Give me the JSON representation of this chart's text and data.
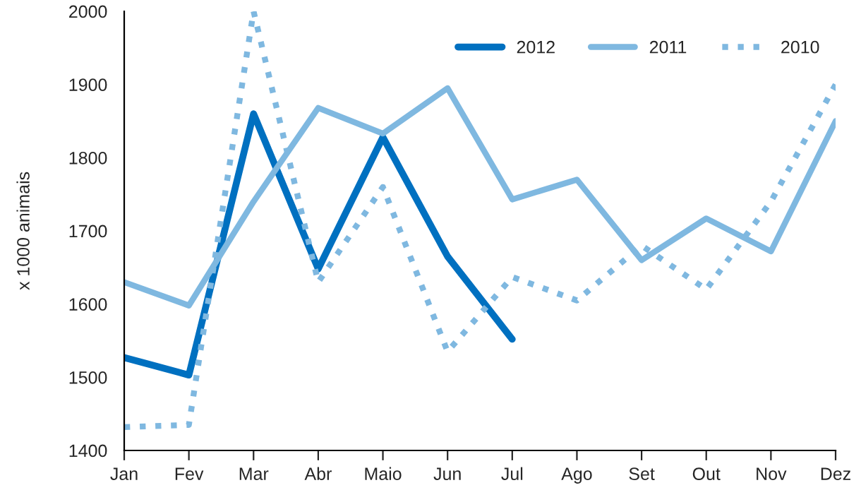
{
  "chart_data": {
    "type": "line",
    "ylabel": "x 1000 animais",
    "categories": [
      "Jan",
      "Fev",
      "Mar",
      "Abr",
      "Maio",
      "Jun",
      "Jul",
      "Ago",
      "Set",
      "Out",
      "Nov",
      "Dez"
    ],
    "series": [
      {
        "name": "2012",
        "color": "#0070c0",
        "line_style": "solid",
        "values": [
          1527,
          1503,
          1860,
          1648,
          1828,
          1665,
          1552,
          null,
          null,
          null,
          null,
          null
        ]
      },
      {
        "name": "2011",
        "color": "#7fb8e0",
        "line_style": "solid",
        "values": [
          1630,
          1598,
          1740,
          1868,
          1833,
          1895,
          1743,
          1770,
          1660,
          1717,
          1672,
          1850
        ]
      },
      {
        "name": "2010",
        "color": "#7fb8e0",
        "line_style": "dotted",
        "values": [
          1432,
          1435,
          2000,
          1630,
          1760,
          1535,
          1637,
          1605,
          1680,
          1620,
          1740,
          1900
        ]
      }
    ],
    "ylim": [
      1400,
      2000
    ],
    "yticks": [
      1400,
      1500,
      1600,
      1700,
      1800,
      1900,
      2000
    ],
    "grid": false,
    "legend": "top right",
    "marker": "none"
  }
}
